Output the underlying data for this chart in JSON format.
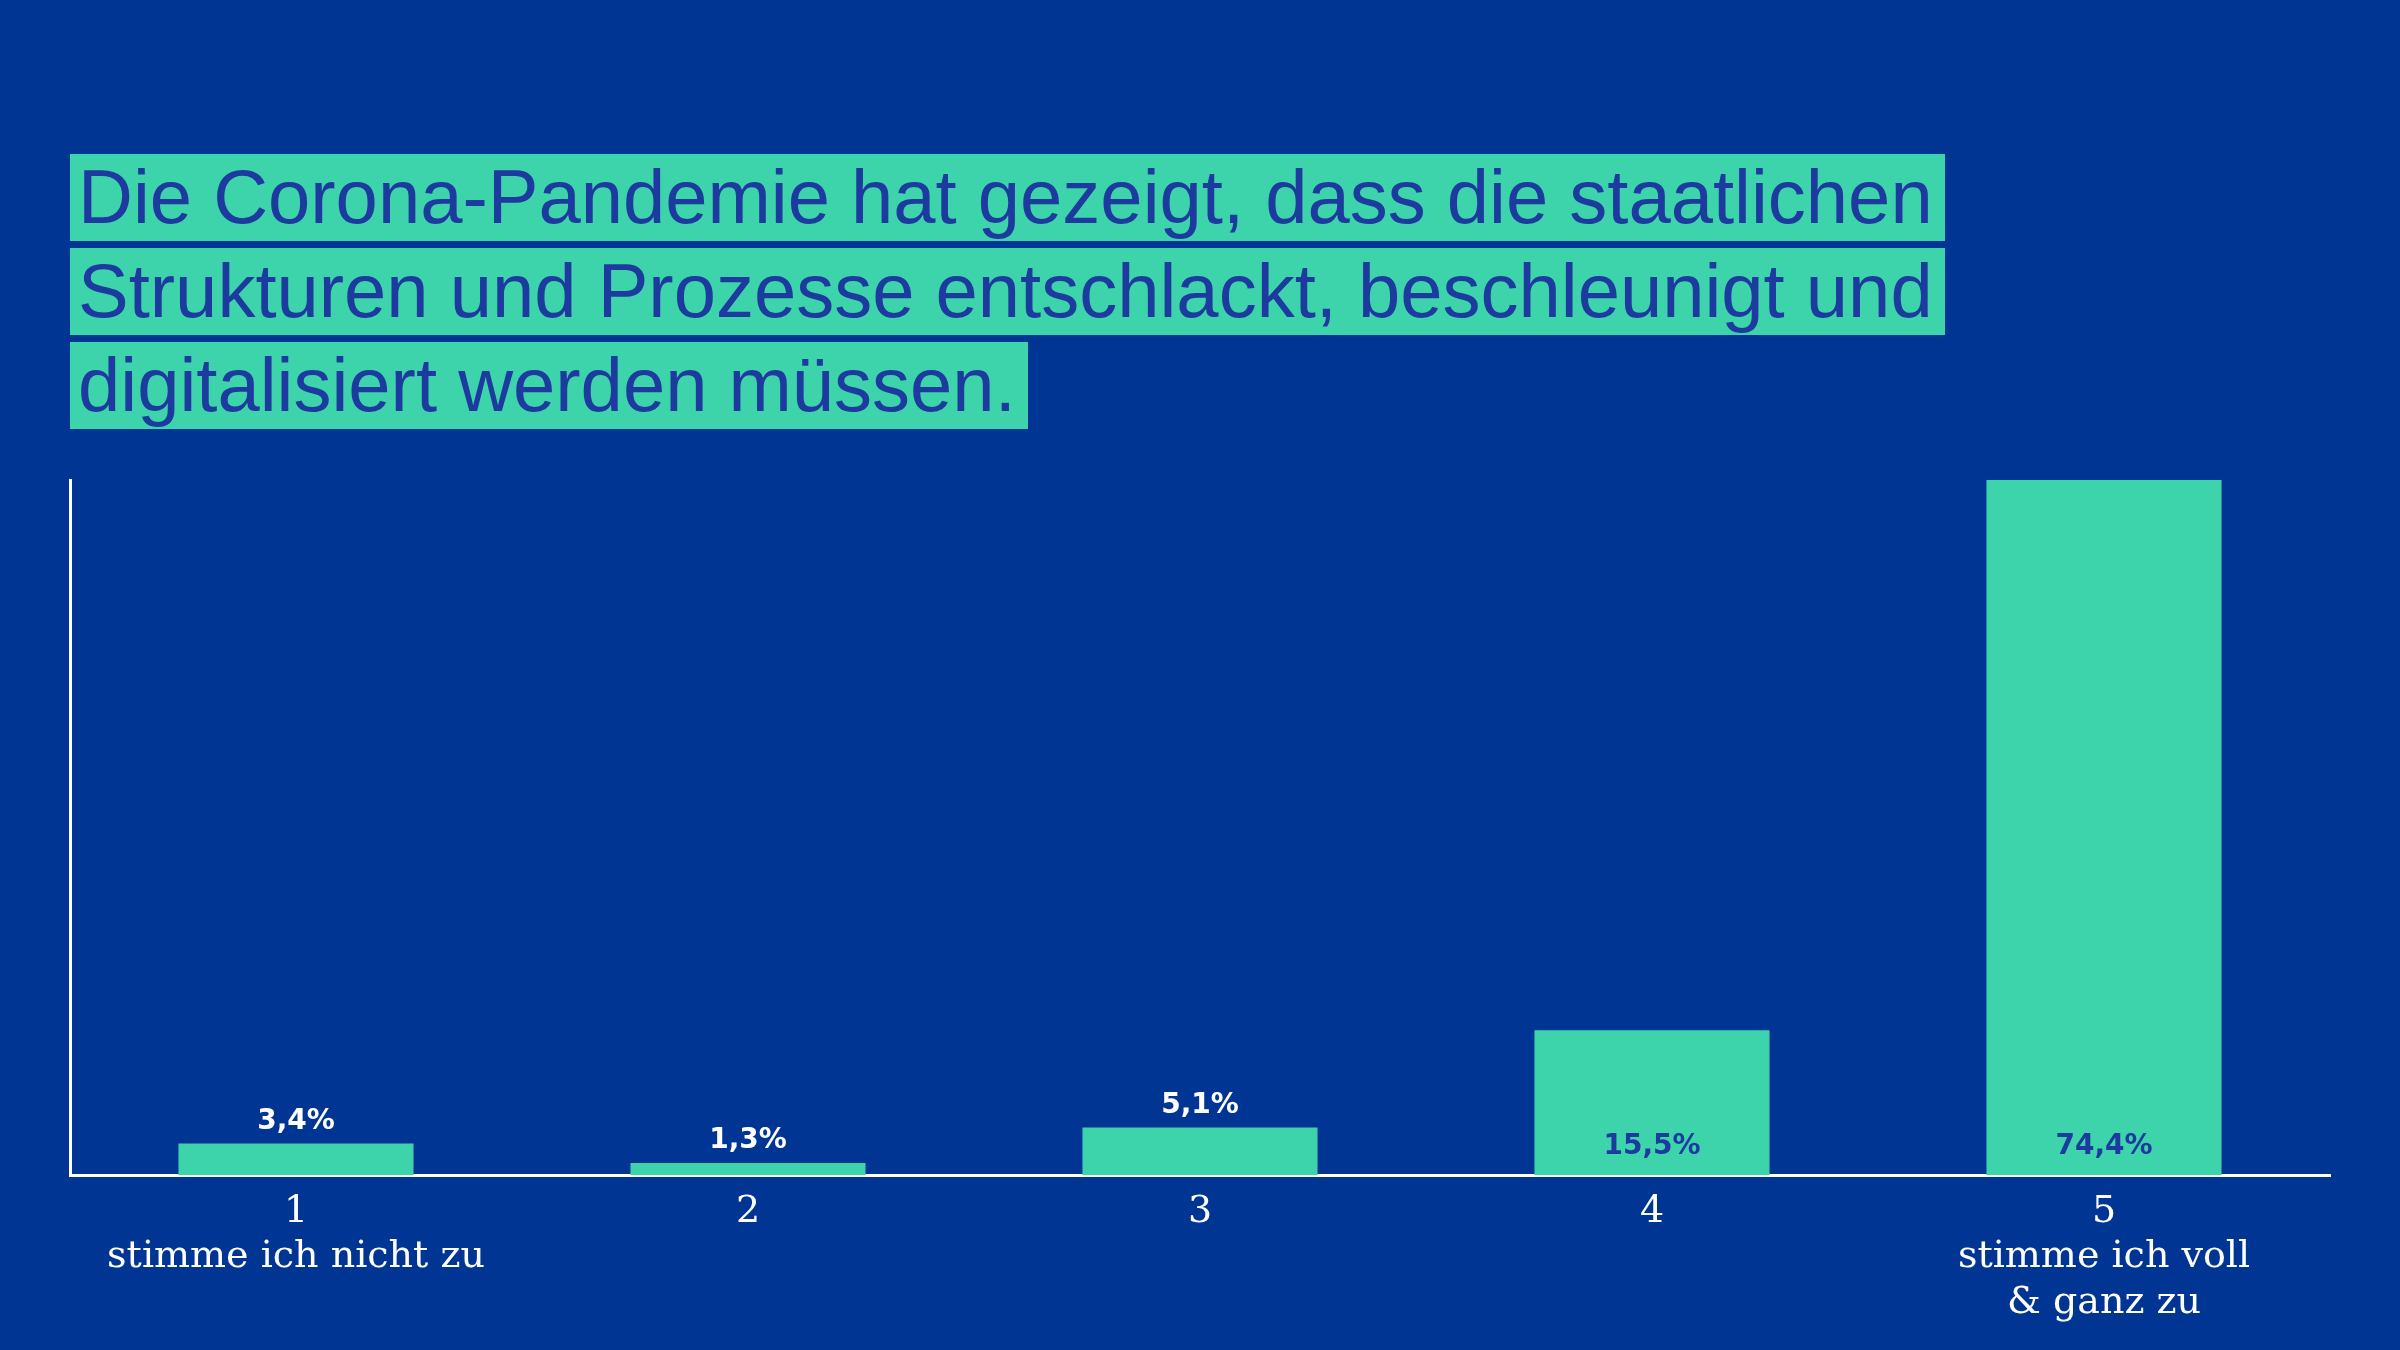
{
  "chart_data": {
    "type": "bar",
    "title": "Die Corona-Pandemie hat gezeigt, dass die staatlichen Strukturen und Prozesse entschlackt, beschleunigt und digitalisiert werden müssen.",
    "categories": [
      "1\nstimme ich nicht zu",
      "2",
      "3",
      "4",
      "5\nstimme ich voll\n& ganz zu"
    ],
    "values": [
      3.4,
      1.3,
      5.1,
      15.5,
      74.4
    ],
    "value_labels": [
      "3,4%",
      "1,3%",
      "5,1%",
      "15,5%",
      "74,4%"
    ],
    "color": "#3dd4ac",
    "relative": false,
    "grid": false,
    "legend": false
  }
}
